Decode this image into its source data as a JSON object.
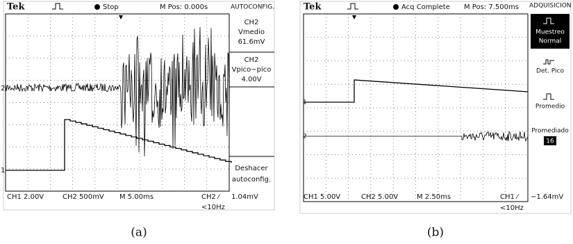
{
  "panels": [
    {
      "header": {
        "brand": "Tek",
        "status": "Stop",
        "position": "M Pos: 0.000s",
        "menu_title": "AUTOCONFIG."
      },
      "menu": [
        "CH2",
        "Vmedio",
        "61.6mV",
        "CH2",
        "Vpico−pico",
        "4.00V",
        "Deshacer",
        "autoconfig."
      ],
      "footer": {
        "ch1": "CH1  2.00V",
        "ch2": "CH2  500mV",
        "time": "M 5.00ms",
        "trigger": "CH2 ⁄",
        "level": "1.04mV",
        "freq": "<10Hz"
      },
      "markers": [
        "1",
        "2"
      ],
      "caption": "(a)"
    },
    {
      "header": {
        "brand": "Tek",
        "status": "Acq Complete",
        "position": "M Pos: 7.500ms",
        "menu_title": "ADQUISICION"
      },
      "menu": [
        "Muestreo",
        "Normal",
        "Det. Pico",
        "Promedio",
        "Promediado",
        "16"
      ],
      "footer": {
        "ch1": "CH1  5.00V",
        "ch2": "CH2  5.00V",
        "time": "M 2.50ms",
        "trigger": "CH1 ⁄",
        "level": "−1.64mV",
        "freq": "<10Hz"
      },
      "markers": [
        "1",
        "2"
      ],
      "caption": "(b)"
    }
  ]
}
